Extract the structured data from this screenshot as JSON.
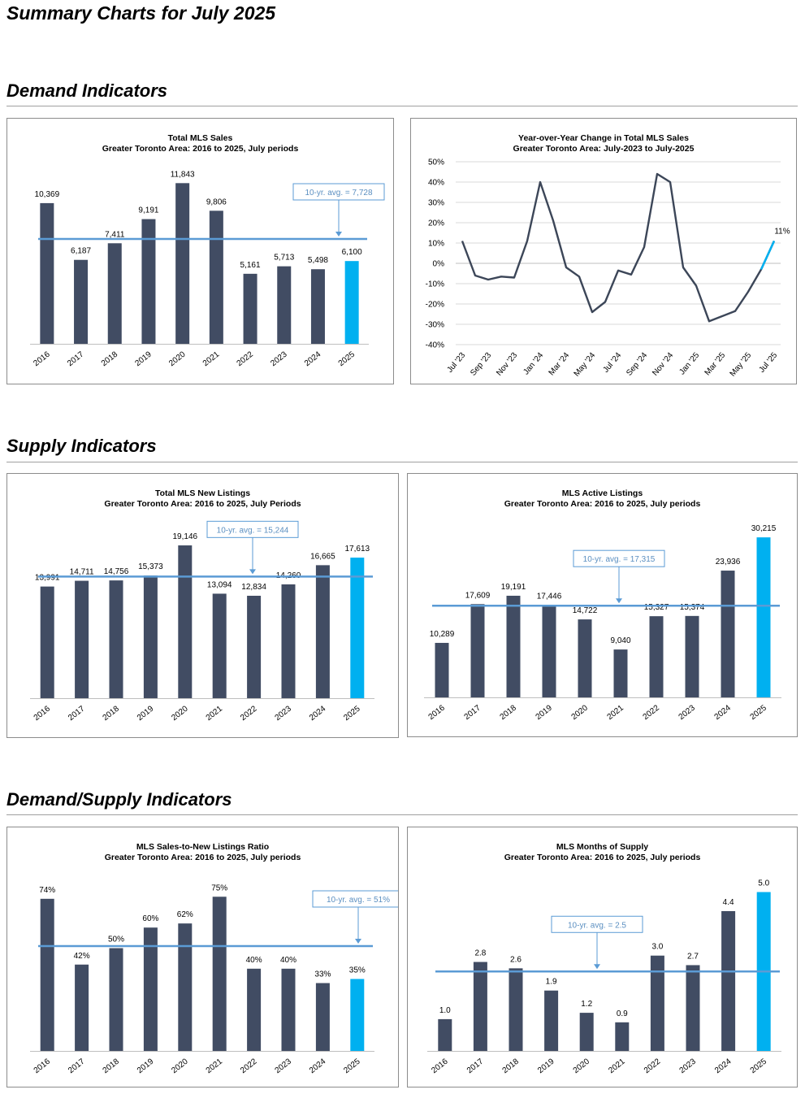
{
  "page": {
    "title": "Summary Charts for July 2025",
    "sections": {
      "demand": "Demand Indicators",
      "supply": "Supply Indicators",
      "demand_supply": "Demand/Supply Indicators"
    }
  },
  "colors": {
    "bar": "#414c63",
    "highlight": "#00b0f0",
    "avg_line": "#5b9bd5",
    "avg_text": "#5b8fc1",
    "line": "#3c4658"
  },
  "chart_data": [
    {
      "id": "sales",
      "type": "bar",
      "title": "Total MLS Sales",
      "subtitle": "Greater Toronto Area: 2016 to 2025, July periods",
      "categories": [
        "2016",
        "2017",
        "2018",
        "2019",
        "2020",
        "2021",
        "2022",
        "2023",
        "2024",
        "2025"
      ],
      "values": [
        10369,
        6187,
        7411,
        9191,
        11843,
        9806,
        5161,
        5713,
        5498,
        6100
      ],
      "labels": [
        "10,369",
        "6,187",
        "7,411",
        "9,191",
        "11,843",
        "9,806",
        "5,161",
        "5,713",
        "5,498",
        "6,100"
      ],
      "highlight_last": true,
      "avg": 7728,
      "avg_label": "10-yr. avg. = 7,728",
      "ylim": [
        0,
        13000
      ]
    },
    {
      "id": "yoy",
      "type": "line",
      "title": "Year-over-Year Change in Total MLS Sales",
      "subtitle": "Greater Toronto Area: July-2023 to July-2025",
      "x": [
        "Jul '23",
        "Aug '23",
        "Sep '23",
        "Oct '23",
        "Nov '23",
        "Dec '23",
        "Jan '24",
        "Feb '24",
        "Mar '24",
        "Apr '24",
        "May '24",
        "Jun '24",
        "Jul '24",
        "Aug '24",
        "Sep '24",
        "Oct '24",
        "Nov '24",
        "Dec '24",
        "Jan '25",
        "Feb '25",
        "Mar '25",
        "Apr '25",
        "May '25",
        "Jun '25",
        "Jul '25"
      ],
      "x_tick_labels": [
        "Jul '23",
        "Sep '23",
        "Nov '23",
        "Jan '24",
        "Mar '24",
        "May '24",
        "Jul '24",
        "Sep '24",
        "Nov '24",
        "Jan '25",
        "Mar '25",
        "May '25",
        "Jul '25"
      ],
      "values": [
        11,
        -6,
        -8,
        -6.5,
        -7,
        11,
        40,
        21,
        -2,
        -6.5,
        -24,
        -19,
        -3.5,
        -5.5,
        8,
        44,
        40,
        -2,
        -11,
        -28.5,
        -26,
        -23.5,
        -14,
        -3,
        11
      ],
      "y_ticks": [
        "50%",
        "40%",
        "30%",
        "20%",
        "10%",
        "0%",
        "-10%",
        "-20%",
        "-30%",
        "-40%"
      ],
      "ylim": [
        -40,
        50
      ],
      "last_label": "11%",
      "grid": true
    },
    {
      "id": "new_listings",
      "type": "bar",
      "title": "Total MLS New Listings",
      "subtitle": "Greater Toronto Area: 2016 to 2025, July Periods",
      "categories": [
        "2016",
        "2017",
        "2018",
        "2019",
        "2020",
        "2021",
        "2022",
        "2023",
        "2024",
        "2025"
      ],
      "values": [
        13991,
        14711,
        14756,
        15373,
        19146,
        13094,
        12834,
        14260,
        16665,
        17613
      ],
      "labels": [
        "13,991",
        "14,711",
        "14,756",
        "15,373",
        "19,146",
        "13,094",
        "12,834",
        "14,260",
        "16,665",
        "17,613"
      ],
      "highlight_last": true,
      "avg": 15244,
      "avg_label": "10-yr. avg. = 15,244",
      "ylim": [
        0,
        22000
      ]
    },
    {
      "id": "active_listings",
      "type": "bar",
      "title": "MLS Active Listings",
      "subtitle": "Greater Toronto Area: 2016 to 2025, July periods",
      "categories": [
        "2016",
        "2017",
        "2018",
        "2019",
        "2020",
        "2021",
        "2022",
        "2023",
        "2024",
        "2025"
      ],
      "values": [
        10289,
        17609,
        19191,
        17446,
        14722,
        9040,
        15327,
        15374,
        23936,
        30215
      ],
      "labels": [
        "10,289",
        "17,609",
        "19,191",
        "17,446",
        "14,722",
        "9,040",
        "15,327",
        "15,374",
        "23,936",
        "30,215"
      ],
      "highlight_last": true,
      "avg": 17315,
      "avg_label": "10-yr. avg. = 17,315",
      "ylim": [
        0,
        33000
      ]
    },
    {
      "id": "snlr",
      "type": "bar",
      "title": "MLS Sales-to-New Listings Ratio",
      "subtitle": "Greater Toronto Area: 2016 to 2025, July periods",
      "categories": [
        "2016",
        "2017",
        "2018",
        "2019",
        "2020",
        "2021",
        "2022",
        "2023",
        "2024",
        "2025"
      ],
      "values": [
        74,
        42,
        50,
        60,
        62,
        75,
        40,
        40,
        33,
        35
      ],
      "labels": [
        "74%",
        "42%",
        "50%",
        "60%",
        "62%",
        "75%",
        "40%",
        "40%",
        "33%",
        "35%"
      ],
      "highlight_last": true,
      "avg": 51,
      "avg_label": "10-yr. avg. = 51%",
      "ylim": [
        0,
        85
      ]
    },
    {
      "id": "months_supply",
      "type": "bar",
      "title": "MLS Months of Supply",
      "subtitle": "Greater Toronto Area: 2016 to 2025, July periods",
      "categories": [
        "2016",
        "2017",
        "2018",
        "2019",
        "2020",
        "2021",
        "2022",
        "2023",
        "2024",
        "2025"
      ],
      "values": [
        1.0,
        2.8,
        2.6,
        1.9,
        1.2,
        0.9,
        3.0,
        2.7,
        4.4,
        5.0
      ],
      "labels": [
        "1.0",
        "2.8",
        "2.6",
        "1.9",
        "1.2",
        "0.9",
        "3.0",
        "2.7",
        "4.4",
        "5.0"
      ],
      "highlight_last": true,
      "avg": 2.5,
      "avg_label": "10-yr. avg. = 2.5",
      "ylim": [
        0,
        5.5
      ]
    }
  ]
}
